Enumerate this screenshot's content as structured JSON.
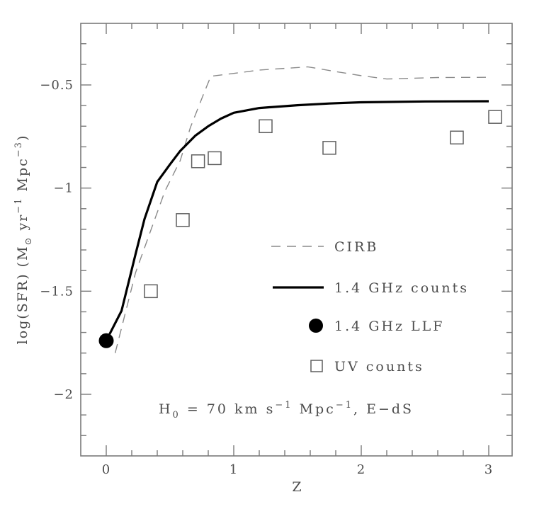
{
  "figure": {
    "background": "#ffffff",
    "frame_color": "#7a7a7a",
    "text_color": "#4d4d4d"
  },
  "chart_data": {
    "type": "line",
    "title": "",
    "xlabel": "Z",
    "ylabel_plain": "log(SFR) (M⊙ yr⁻¹ Mpc⁻³)",
    "ylabel_parts": [
      {
        "t": "log(SFR) (M",
        "s": "n"
      },
      {
        "t": "⊙",
        "s": "sub"
      },
      {
        "t": " yr",
        "s": "n"
      },
      {
        "t": "−1",
        "s": "sup"
      },
      {
        "t": " Mpc",
        "s": "n"
      },
      {
        "t": "−3",
        "s": "sup"
      },
      {
        "t": ")",
        "s": "n"
      }
    ],
    "xlim": [
      -0.2,
      3.1833
    ],
    "ylim": [
      -2.3,
      -0.2
    ],
    "grid": false,
    "x_major_ticks": [
      0,
      1,
      2,
      3
    ],
    "x_major_tick_labels": [
      "0",
      "1",
      "2",
      "3"
    ],
    "x_minor_step": 0.2,
    "y_major_ticks": [
      -0.5,
      -1.0,
      -1.5,
      -2.0
    ],
    "y_major_tick_labels": [
      "−0.5",
      "−1",
      "−1.5",
      "−2"
    ],
    "y_minor_step": 0.1,
    "series": [
      {
        "name": "CIRB",
        "type": "line",
        "style": "dashed",
        "color": "#8a8a8a",
        "width": 1.4,
        "points": [
          [
            0.07,
            -1.8
          ],
          [
            0.23,
            -1.41
          ],
          [
            0.46,
            -1.015
          ],
          [
            0.58,
            -0.867
          ],
          [
            0.66,
            -0.706
          ],
          [
            0.77,
            -0.534
          ],
          [
            0.82,
            -0.458
          ],
          [
            1.0,
            -0.444
          ],
          [
            1.2,
            -0.428
          ],
          [
            1.58,
            -0.412
          ],
          [
            1.8,
            -0.435
          ],
          [
            2.0,
            -0.455
          ],
          [
            2.2,
            -0.471
          ],
          [
            2.6,
            -0.464
          ],
          [
            3.0,
            -0.463
          ]
        ]
      },
      {
        "name": "1.4 GHz counts",
        "type": "line",
        "style": "solid",
        "color": "#000000",
        "width": 3.2,
        "points": [
          [
            0.0,
            -1.74
          ],
          [
            0.12,
            -1.595
          ],
          [
            0.23,
            -1.32
          ],
          [
            0.3,
            -1.15
          ],
          [
            0.4,
            -0.97
          ],
          [
            0.5,
            -0.885
          ],
          [
            0.58,
            -0.82
          ],
          [
            0.7,
            -0.745
          ],
          [
            0.8,
            -0.7
          ],
          [
            0.9,
            -0.663
          ],
          [
            1.0,
            -0.635
          ],
          [
            1.2,
            -0.612
          ],
          [
            1.5,
            -0.598
          ],
          [
            1.75,
            -0.59
          ],
          [
            2.0,
            -0.584
          ],
          [
            2.5,
            -0.58
          ],
          [
            3.0,
            -0.579
          ]
        ]
      },
      {
        "name": "1.4 GHz LLF",
        "type": "scatter",
        "marker": "filled-circle",
        "color": "#000000",
        "size": 10.5,
        "points": [
          [
            0.0,
            -1.74
          ]
        ]
      },
      {
        "name": "UV counts",
        "type": "scatter",
        "marker": "open-square",
        "color": "#5f5f5f",
        "size": 18,
        "points": [
          [
            0.35,
            -1.5
          ],
          [
            0.6,
            -1.155
          ],
          [
            0.72,
            -0.87
          ],
          [
            0.85,
            -0.855
          ],
          [
            1.25,
            -0.7
          ],
          [
            1.75,
            -0.805
          ],
          [
            2.75,
            -0.755
          ],
          [
            3.05,
            -0.655
          ]
        ]
      }
    ],
    "legend": {
      "position": "center-right",
      "items": [
        {
          "label": "CIRB",
          "swatch": "dashed-line"
        },
        {
          "label": "1.4 GHz counts",
          "swatch": "solid-line"
        },
        {
          "label": "1.4 GHz LLF",
          "swatch": "filled-circle"
        },
        {
          "label": "UV counts",
          "swatch": "open-square"
        }
      ]
    },
    "annotation_plain": "H0 = 70 km s⁻¹ Mpc⁻¹, E−dS",
    "annotation_parts": [
      {
        "t": "H",
        "s": "n"
      },
      {
        "t": "0",
        "s": "sub"
      },
      {
        "t": " = 70 km s",
        "s": "n"
      },
      {
        "t": "−1",
        "s": "sup"
      },
      {
        "t": " Mpc",
        "s": "n"
      },
      {
        "t": "−1",
        "s": "sup"
      },
      {
        "t": ", E−dS",
        "s": "n"
      }
    ]
  }
}
